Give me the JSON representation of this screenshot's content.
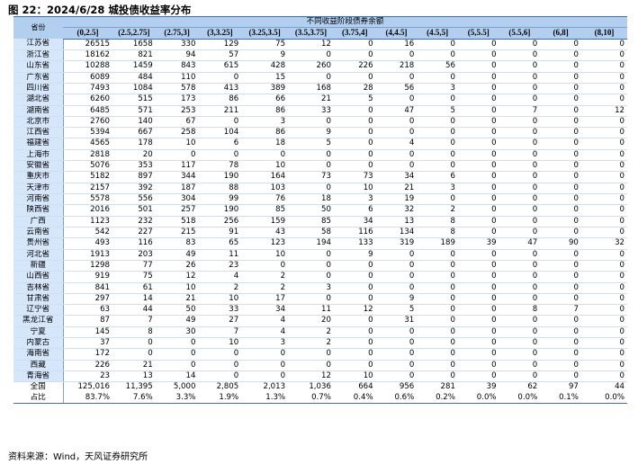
{
  "title": "图 22：2024/6/28 城投债收益率分布",
  "source": "资料来源：Wind，天风证券研究所",
  "table": {
    "corner_label": "省份",
    "group_header": "不同收益阶段债券余额",
    "columns": [
      "(0,2.5]",
      "(2.5,2.75]",
      "(2.75,3]",
      "(3,3.25]",
      "(3.25,3.5]",
      "(3.5,3.75]",
      "(3.75,4]",
      "(4,4.5]",
      "(4.5,5]",
      "(5,5.5]",
      "(5.5,6]",
      "(6,8]",
      "(8,10]"
    ],
    "rows": [
      {
        "name": "江苏省",
        "values": [
          "26515",
          "1658",
          "330",
          "129",
          "75",
          "12",
          "0",
          "16",
          "0",
          "0",
          "0",
          "0",
          "0"
        ]
      },
      {
        "name": "浙江省",
        "values": [
          "18162",
          "821",
          "94",
          "57",
          "9",
          "0",
          "0",
          "0",
          "0",
          "0",
          "0",
          "0",
          "0"
        ]
      },
      {
        "name": "山东省",
        "values": [
          "10288",
          "1459",
          "843",
          "615",
          "428",
          "260",
          "226",
          "218",
          "56",
          "0",
          "0",
          "0",
          "0"
        ]
      },
      {
        "name": "广东省",
        "values": [
          "6089",
          "484",
          "110",
          "0",
          "15",
          "0",
          "0",
          "0",
          "0",
          "0",
          "0",
          "0",
          "0"
        ]
      },
      {
        "name": "四川省",
        "values": [
          "7493",
          "1084",
          "578",
          "413",
          "389",
          "168",
          "28",
          "56",
          "3",
          "0",
          "0",
          "0",
          "0"
        ]
      },
      {
        "name": "湖北省",
        "values": [
          "6260",
          "515",
          "173",
          "86",
          "66",
          "21",
          "5",
          "0",
          "0",
          "0",
          "0",
          "0",
          "0"
        ]
      },
      {
        "name": "湖南省",
        "values": [
          "6485",
          "571",
          "253",
          "211",
          "86",
          "33",
          "0",
          "47",
          "5",
          "0",
          "7",
          "0",
          "12"
        ]
      },
      {
        "name": "北京市",
        "values": [
          "2760",
          "140",
          "67",
          "0",
          "3",
          "0",
          "0",
          "0",
          "0",
          "0",
          "0",
          "0",
          "0"
        ]
      },
      {
        "name": "江西省",
        "values": [
          "5394",
          "667",
          "258",
          "104",
          "86",
          "9",
          "0",
          "0",
          "0",
          "0",
          "0",
          "0",
          "0"
        ]
      },
      {
        "name": "福建省",
        "values": [
          "4565",
          "178",
          "10",
          "6",
          "18",
          "5",
          "0",
          "4",
          "0",
          "0",
          "0",
          "0",
          "0"
        ]
      },
      {
        "name": "上海市",
        "values": [
          "2818",
          "20",
          "0",
          "0",
          "0",
          "0",
          "0",
          "0",
          "0",
          "0",
          "0",
          "0",
          "0"
        ]
      },
      {
        "name": "安徽省",
        "values": [
          "5076",
          "353",
          "117",
          "78",
          "10",
          "0",
          "0",
          "0",
          "0",
          "0",
          "0",
          "0",
          "0"
        ]
      },
      {
        "name": "重庆市",
        "values": [
          "5182",
          "897",
          "344",
          "190",
          "164",
          "73",
          "73",
          "34",
          "6",
          "0",
          "0",
          "0",
          "0"
        ]
      },
      {
        "name": "天津市",
        "values": [
          "2157",
          "392",
          "187",
          "88",
          "103",
          "0",
          "10",
          "21",
          "3",
          "0",
          "0",
          "0",
          "0"
        ]
      },
      {
        "name": "河南省",
        "values": [
          "5578",
          "556",
          "304",
          "99",
          "76",
          "18",
          "3",
          "19",
          "0",
          "0",
          "0",
          "0",
          "0"
        ]
      },
      {
        "name": "陕西省",
        "values": [
          "2016",
          "501",
          "257",
          "190",
          "85",
          "50",
          "6",
          "32",
          "2",
          "0",
          "0",
          "0",
          "0"
        ]
      },
      {
        "name": "广西",
        "values": [
          "1123",
          "232",
          "518",
          "256",
          "159",
          "85",
          "34",
          "13",
          "8",
          "0",
          "0",
          "0",
          "0"
        ]
      },
      {
        "name": "云南省",
        "values": [
          "542",
          "227",
          "215",
          "91",
          "43",
          "58",
          "116",
          "134",
          "8",
          "0",
          "0",
          "0",
          "0"
        ]
      },
      {
        "name": "贵州省",
        "values": [
          "493",
          "116",
          "83",
          "65",
          "123",
          "194",
          "133",
          "319",
          "189",
          "39",
          "47",
          "90",
          "32"
        ]
      },
      {
        "name": "河北省",
        "values": [
          "1913",
          "203",
          "49",
          "11",
          "10",
          "0",
          "9",
          "0",
          "0",
          "0",
          "0",
          "0",
          "0"
        ]
      },
      {
        "name": "新疆",
        "values": [
          "1298",
          "77",
          "26",
          "23",
          "0",
          "0",
          "0",
          "0",
          "0",
          "0",
          "0",
          "0",
          "0"
        ]
      },
      {
        "name": "山西省",
        "values": [
          "919",
          "75",
          "12",
          "4",
          "2",
          "0",
          "0",
          "0",
          "0",
          "0",
          "0",
          "0",
          "0"
        ]
      },
      {
        "name": "吉林省",
        "values": [
          "841",
          "61",
          "10",
          "2",
          "2",
          "3",
          "0",
          "0",
          "0",
          "0",
          "0",
          "0",
          "0"
        ]
      },
      {
        "name": "甘肃省",
        "values": [
          "297",
          "14",
          "21",
          "10",
          "17",
          "0",
          "0",
          "9",
          "0",
          "0",
          "0",
          "0",
          "0"
        ]
      },
      {
        "name": "辽宁省",
        "values": [
          "63",
          "44",
          "50",
          "33",
          "34",
          "11",
          "12",
          "5",
          "0",
          "0",
          "8",
          "7",
          "0"
        ]
      },
      {
        "name": "黑龙江省",
        "values": [
          "87",
          "7",
          "49",
          "27",
          "4",
          "20",
          "0",
          "31",
          "0",
          "0",
          "0",
          "0",
          "0"
        ]
      },
      {
        "name": "宁夏",
        "values": [
          "145",
          "8",
          "30",
          "7",
          "4",
          "2",
          "0",
          "0",
          "0",
          "0",
          "0",
          "0",
          "0"
        ]
      },
      {
        "name": "内蒙古",
        "values": [
          "37",
          "0",
          "0",
          "10",
          "3",
          "2",
          "0",
          "0",
          "0",
          "0",
          "0",
          "0",
          "0"
        ]
      },
      {
        "name": "海南省",
        "values": [
          "172",
          "0",
          "0",
          "0",
          "0",
          "0",
          "0",
          "0",
          "0",
          "0",
          "0",
          "0",
          "0"
        ]
      },
      {
        "name": "西藏",
        "values": [
          "226",
          "21",
          "0",
          "0",
          "0",
          "0",
          "0",
          "0",
          "0",
          "0",
          "0",
          "0",
          "0"
        ]
      },
      {
        "name": "青海省",
        "values": [
          "23",
          "13",
          "14",
          "0",
          "0",
          "12",
          "10",
          "0",
          "0",
          "0",
          "0",
          "0",
          "0"
        ]
      }
    ],
    "total": {
      "name": "全国",
      "values": [
        "125,016",
        "11,395",
        "5,000",
        "2,805",
        "2,013",
        "1,036",
        "664",
        "956",
        "281",
        "39",
        "62",
        "97",
        "44"
      ]
    },
    "ratio": {
      "name": "占比",
      "values": [
        "83.7%",
        "7.6%",
        "3.3%",
        "1.9%",
        "1.3%",
        "0.7%",
        "0.4%",
        "0.6%",
        "0.2%",
        "0.0%",
        "0.0%",
        "0.1%",
        "0.0%"
      ]
    }
  }
}
